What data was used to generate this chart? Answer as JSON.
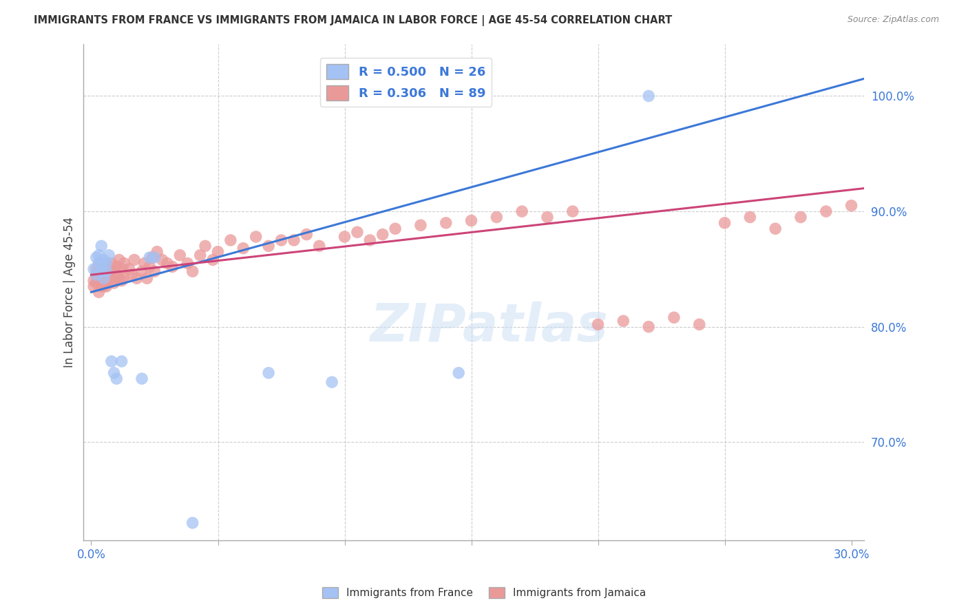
{
  "title": "IMMIGRANTS FROM FRANCE VS IMMIGRANTS FROM JAMAICA IN LABOR FORCE | AGE 45-54 CORRELATION CHART",
  "source": "Source: ZipAtlas.com",
  "ylabel": "In Labor Force | Age 45-54",
  "xlim": [
    -0.003,
    0.305
  ],
  "ylim": [
    0.615,
    1.045
  ],
  "xtick_positions": [
    0.0,
    0.05,
    0.1,
    0.15,
    0.2,
    0.25,
    0.3
  ],
  "xtick_labels": [
    "0.0%",
    "",
    "",
    "",
    "",
    "",
    "30.0%"
  ],
  "ytick_positions": [
    1.0,
    0.9,
    0.8,
    0.7
  ],
  "ytick_labels": [
    "100.0%",
    "90.0%",
    "80.0%",
    "70.0%"
  ],
  "france_color": "#a4c2f4",
  "jamaica_color": "#ea9999",
  "france_line_color": "#3c78d8",
  "jamaica_line_color": "#cc4478",
  "france_R": 0.5,
  "france_N": 26,
  "jamaica_R": 0.306,
  "jamaica_N": 89,
  "legend_label_france": "Immigrants from France",
  "legend_label_jamaica": "Immigrants from Jamaica",
  "watermark": "ZIPatlas",
  "france_line_x0": 0.0,
  "france_line_y0": 0.83,
  "france_line_x1": 0.305,
  "france_line_y1": 1.015,
  "jamaica_line_x0": 0.0,
  "jamaica_line_y0": 0.845,
  "jamaica_line_x1": 0.305,
  "jamaica_line_y1": 0.92,
  "france_x": [
    0.001,
    0.002,
    0.002,
    0.003,
    0.003,
    0.004,
    0.004,
    0.004,
    0.005,
    0.005,
    0.006,
    0.006,
    0.007,
    0.008,
    0.009,
    0.01,
    0.012,
    0.02,
    0.023,
    0.025,
    0.04,
    0.07,
    0.095,
    0.13,
    0.145,
    0.22
  ],
  "france_y": [
    0.85,
    0.86,
    0.845,
    0.855,
    0.862,
    0.848,
    0.854,
    0.87,
    0.858,
    0.842,
    0.855,
    0.848,
    0.862,
    0.77,
    0.76,
    0.755,
    0.77,
    0.755,
    0.86,
    0.86,
    0.63,
    0.76,
    0.752,
    1.0,
    0.76,
    1.0
  ],
  "jamaica_x": [
    0.001,
    0.001,
    0.002,
    0.002,
    0.002,
    0.003,
    0.003,
    0.003,
    0.003,
    0.004,
    0.004,
    0.004,
    0.005,
    0.005,
    0.005,
    0.005,
    0.006,
    0.006,
    0.006,
    0.006,
    0.007,
    0.007,
    0.007,
    0.008,
    0.008,
    0.008,
    0.009,
    0.009,
    0.01,
    0.01,
    0.01,
    0.011,
    0.011,
    0.012,
    0.012,
    0.013,
    0.013,
    0.015,
    0.016,
    0.017,
    0.018,
    0.02,
    0.021,
    0.022,
    0.023,
    0.024,
    0.025,
    0.026,
    0.028,
    0.03,
    0.032,
    0.035,
    0.038,
    0.04,
    0.043,
    0.045,
    0.048,
    0.05,
    0.055,
    0.06,
    0.065,
    0.07,
    0.075,
    0.08,
    0.085,
    0.09,
    0.1,
    0.105,
    0.11,
    0.115,
    0.12,
    0.13,
    0.14,
    0.15,
    0.16,
    0.17,
    0.18,
    0.19,
    0.2,
    0.21,
    0.22,
    0.23,
    0.24,
    0.25,
    0.26,
    0.27,
    0.28,
    0.29,
    0.3
  ],
  "jamaica_y": [
    0.84,
    0.835,
    0.845,
    0.838,
    0.85,
    0.842,
    0.83,
    0.848,
    0.855,
    0.84,
    0.835,
    0.85,
    0.845,
    0.838,
    0.852,
    0.835,
    0.848,
    0.84,
    0.855,
    0.835,
    0.843,
    0.85,
    0.838,
    0.848,
    0.855,
    0.84,
    0.85,
    0.838,
    0.845,
    0.852,
    0.84,
    0.858,
    0.842,
    0.85,
    0.84,
    0.855,
    0.842,
    0.85,
    0.845,
    0.858,
    0.842,
    0.848,
    0.855,
    0.842,
    0.852,
    0.86,
    0.848,
    0.865,
    0.858,
    0.855,
    0.852,
    0.862,
    0.855,
    0.848,
    0.862,
    0.87,
    0.858,
    0.865,
    0.875,
    0.868,
    0.878,
    0.87,
    0.875,
    0.875,
    0.88,
    0.87,
    0.878,
    0.882,
    0.875,
    0.88,
    0.885,
    0.888,
    0.89,
    0.892,
    0.895,
    0.9,
    0.895,
    0.9,
    0.802,
    0.805,
    0.8,
    0.808,
    0.802,
    0.89,
    0.895,
    0.885,
    0.895,
    0.9,
    0.905
  ]
}
